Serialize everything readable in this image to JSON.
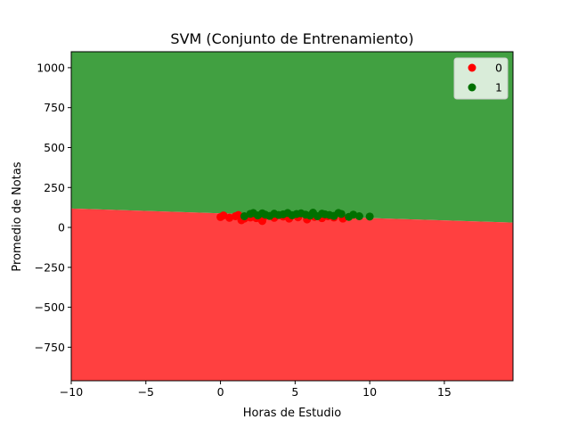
{
  "chart_data": {
    "type": "scatter",
    "title": "SVM (Conjunto de Entrenamiento)",
    "xlabel": "Horas de Estudio",
    "ylabel": "Promedio de Notas",
    "xlim": [
      -10,
      19.6
    ],
    "ylim": [
      -960,
      1100
    ],
    "xticks": [
      -10,
      -5,
      0,
      5,
      10,
      15
    ],
    "yticks": [
      -750,
      -500,
      -250,
      0,
      250,
      500,
      750,
      1000
    ],
    "xtick_labels": [
      "−10",
      "−5",
      "0",
      "5",
      "10",
      "15"
    ],
    "ytick_labels": [
      "−750",
      "−500",
      "−250",
      "0",
      "250",
      "500",
      "750",
      "1000"
    ],
    "grid": false,
    "legend_position": "top-right",
    "decision_boundary": {
      "points": [
        [
          -10,
          118
        ],
        [
          19.6,
          30
        ]
      ],
      "above_class": "1",
      "below_class": "0",
      "above_color": "#41a041",
      "below_color": "#ff4040"
    },
    "series": [
      {
        "name": "0",
        "color": "#ff0000",
        "x": [
          0.0,
          0.2,
          0.6,
          1.0,
          1.2,
          1.4,
          1.6,
          2.0,
          2.4,
          2.8,
          3.0,
          3.6,
          4.2,
          4.6,
          5.2,
          5.8,
          6.3,
          6.8,
          7.2,
          7.6,
          8.2
        ],
        "y": [
          65,
          75,
          60,
          70,
          78,
          45,
          55,
          62,
          58,
          40,
          72,
          60,
          68,
          55,
          63,
          50,
          66,
          58,
          70,
          62,
          55
        ]
      },
      {
        "name": "1",
        "color": "#007000",
        "x": [
          1.6,
          2.0,
          2.2,
          2.5,
          2.8,
          3.0,
          3.3,
          3.6,
          3.9,
          4.2,
          4.5,
          4.8,
          5.1,
          5.4,
          5.7,
          6.0,
          6.2,
          6.5,
          6.8,
          7.0,
          7.3,
          7.6,
          7.9,
          8.1,
          8.6,
          8.9,
          9.3,
          10.0
        ],
        "y": [
          70,
          85,
          90,
          75,
          88,
          80,
          72,
          86,
          78,
          82,
          90,
          76,
          84,
          88,
          80,
          74,
          92,
          70,
          86,
          82,
          78,
          72,
          90,
          84,
          66,
          80,
          70,
          68
        ]
      }
    ]
  }
}
